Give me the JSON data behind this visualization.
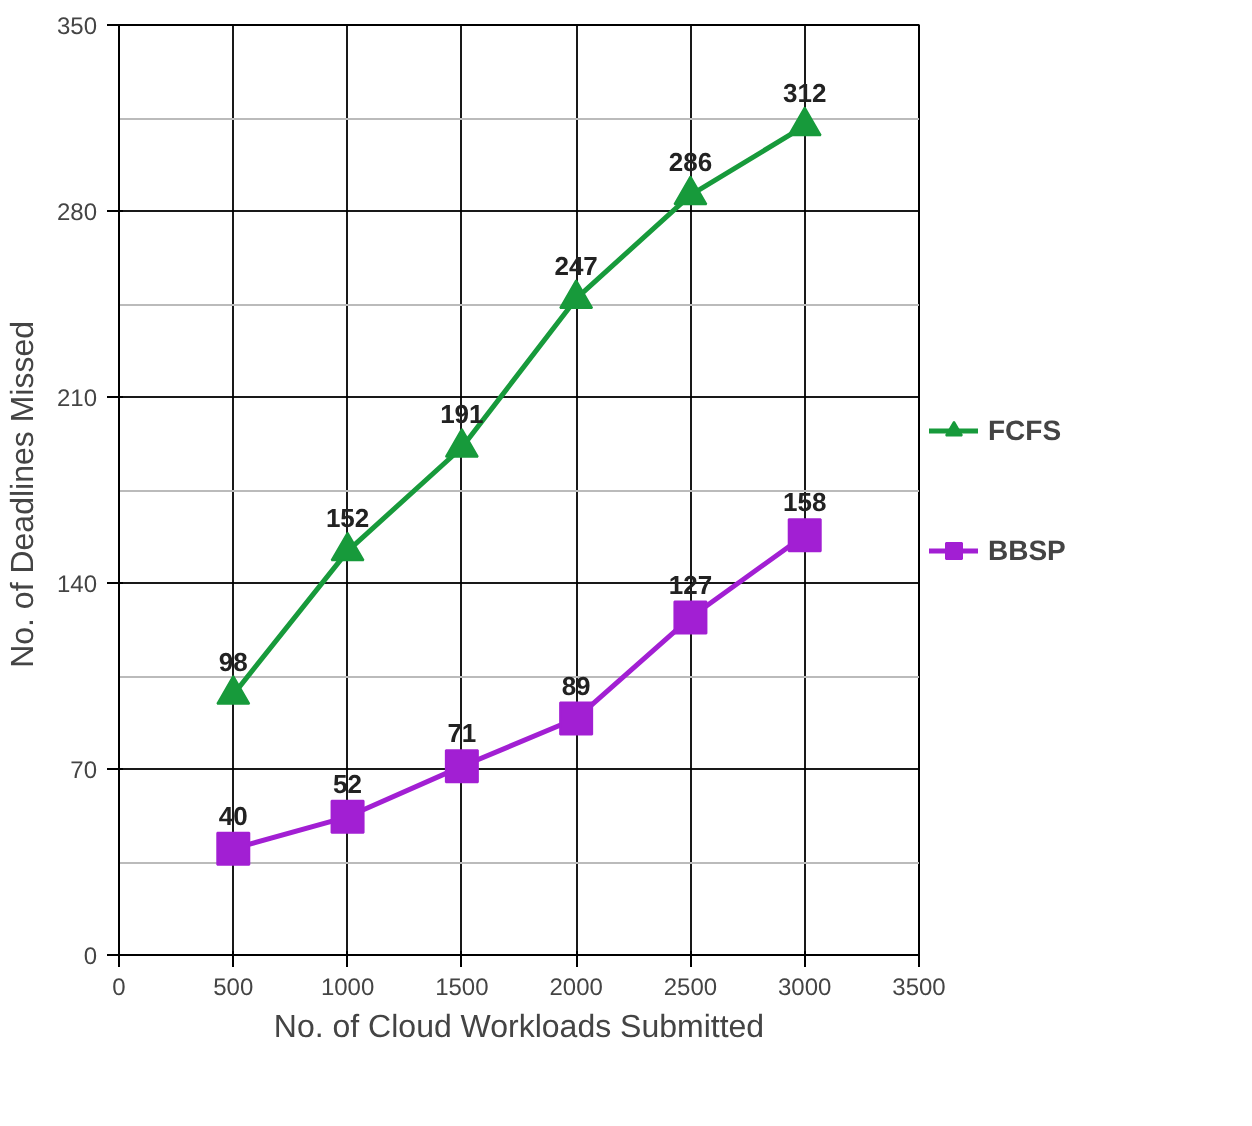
{
  "chart_data": {
    "type": "line",
    "xlabel": "No. of Cloud Workloads Submitted",
    "ylabel": "No. of  Deadlines Missed",
    "x": [
      500,
      1000,
      1500,
      2000,
      2500,
      3000
    ],
    "series": [
      {
        "name": "FCFS",
        "color": "#179a3b",
        "marker": "triangle",
        "values": [
          98,
          152,
          191,
          247,
          286,
          312
        ]
      },
      {
        "name": "BBSP",
        "color": "#a21fd3",
        "marker": "square",
        "values": [
          40,
          52,
          71,
          89,
          127,
          158
        ]
      }
    ],
    "xlim": [
      0,
      3500
    ],
    "xticks": [
      0,
      500,
      1000,
      1500,
      2000,
      2500,
      3000,
      3500
    ],
    "ylim": [
      0,
      350
    ],
    "yticks": [
      0,
      70,
      140,
      210,
      280,
      350
    ],
    "grid": true,
    "legend": "right",
    "data_labels": true,
    "line_style": "solid"
  }
}
